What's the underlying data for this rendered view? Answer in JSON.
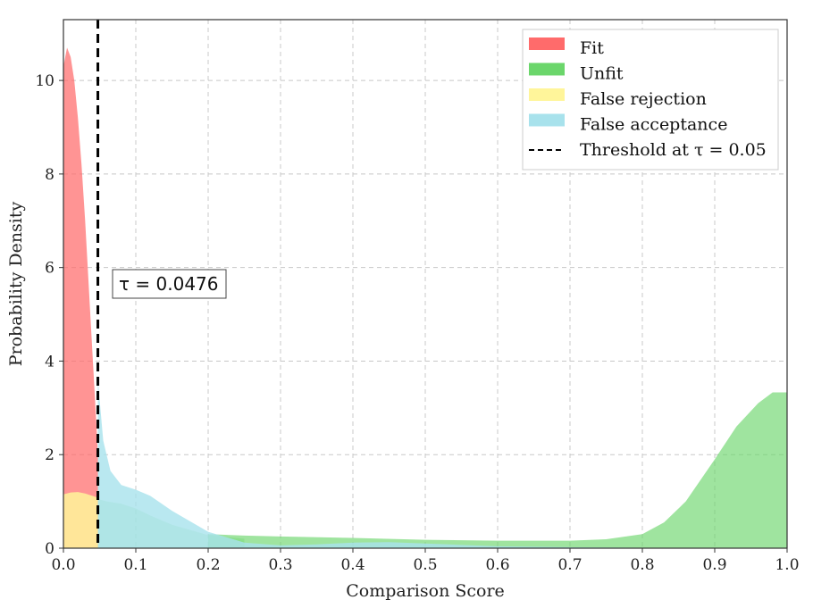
{
  "chart_data": {
    "type": "area",
    "xlabel": "Comparison Score",
    "ylabel": "Probability Density",
    "xlim": [
      0.0,
      1.0
    ],
    "ylim": [
      0,
      11.3
    ],
    "xticks": [
      "0.0",
      "0.1",
      "0.2",
      "0.3",
      "0.4",
      "0.5",
      "0.6",
      "0.7",
      "0.8",
      "0.9",
      "1.0"
    ],
    "yticks": [
      "0",
      "2",
      "4",
      "6",
      "8",
      "10"
    ],
    "grid": true,
    "legend_position": "top-right",
    "series": [
      {
        "name": "Fit",
        "color": "#ff6b6b",
        "x": [
          0.0,
          0.005,
          0.01,
          0.015,
          0.02,
          0.025,
          0.03,
          0.035,
          0.04,
          0.045,
          0.0476
        ],
        "y": [
          10.3,
          10.7,
          10.5,
          10.0,
          9.2,
          8.2,
          7.0,
          5.6,
          4.2,
          2.8,
          2.0
        ]
      },
      {
        "name": "Unfit",
        "color": "#6bd66b",
        "x": [
          0.2,
          0.25,
          0.3,
          0.4,
          0.5,
          0.6,
          0.7,
          0.75,
          0.8,
          0.83,
          0.86,
          0.9,
          0.93,
          0.96,
          0.98,
          1.0
        ],
        "y": [
          0.3,
          0.27,
          0.25,
          0.22,
          0.18,
          0.16,
          0.16,
          0.19,
          0.3,
          0.55,
          1.0,
          1.9,
          2.6,
          3.1,
          3.33,
          3.33
        ]
      },
      {
        "name": "False rejection",
        "color": "#fff59a",
        "x": [
          0.0,
          0.01,
          0.02,
          0.03,
          0.04,
          0.0476
        ],
        "y": [
          1.15,
          1.19,
          1.2,
          1.17,
          1.12,
          1.08
        ]
      },
      {
        "name": "False acceptance",
        "color": "#a8e2ec",
        "x": [
          0.0476,
          0.055,
          0.065,
          0.08,
          0.1,
          0.12,
          0.15,
          0.2,
          0.25,
          0.3,
          0.35,
          0.4,
          0.45,
          0.5,
          0.55,
          0.6,
          0.7,
          0.8,
          1.0
        ],
        "y": [
          3.6,
          2.3,
          1.65,
          1.35,
          1.25,
          1.12,
          0.8,
          0.35,
          0.12,
          0.06,
          0.08,
          0.12,
          0.13,
          0.1,
          0.07,
          0.04,
          0.02,
          0.01,
          0.0
        ]
      }
    ],
    "fit_below_threshold_fill": {
      "color": "#6bd66b",
      "x": [
        0.0476,
        0.06,
        0.08,
        0.1,
        0.12,
        0.15,
        0.2,
        0.25
      ],
      "y": [
        1.05,
        1.0,
        0.95,
        0.85,
        0.7,
        0.5,
        0.28,
        0.2
      ]
    },
    "threshold": {
      "label": "Threshold at τ = 0.05",
      "value": 0.0476,
      "color": "#000000"
    },
    "annotation": "τ = 0.0476"
  }
}
